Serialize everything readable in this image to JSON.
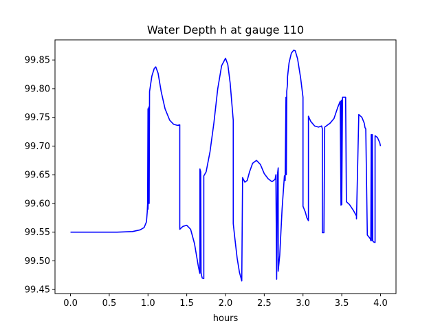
{
  "chart_data": {
    "type": "line",
    "title": "Water Depth h at gauge 110",
    "xlabel": "hours",
    "ylabel": "",
    "xlim": [
      -0.2,
      4.2
    ],
    "ylim": [
      99.443,
      99.885
    ],
    "x_ticks": [
      0.0,
      0.5,
      1.0,
      1.5,
      2.0,
      2.5,
      3.0,
      3.5,
      4.0
    ],
    "x_tick_labels": [
      "0.0",
      "0.5",
      "1.0",
      "1.5",
      "2.0",
      "2.5",
      "3.0",
      "3.5",
      "4.0"
    ],
    "y_ticks": [
      99.45,
      99.5,
      99.55,
      99.6,
      99.65,
      99.7,
      99.75,
      99.8,
      99.85
    ],
    "y_tick_labels": [
      "99.45",
      "99.50",
      "99.55",
      "99.60",
      "99.65",
      "99.70",
      "99.75",
      "99.80",
      "99.85"
    ],
    "grid": false,
    "series": [
      {
        "color": "#0000ff",
        "x": [
          0.0,
          0.3,
          0.6,
          0.8,
          0.9,
          0.95,
          0.98,
          0.99,
          0.995,
          1.0,
          1.0,
          1.005,
          1.01,
          1.015,
          1.02,
          1.05,
          1.08,
          1.1,
          1.13,
          1.17,
          1.22,
          1.28,
          1.33,
          1.38,
          1.41,
          1.41,
          1.45,
          1.5,
          1.55,
          1.6,
          1.65,
          1.665,
          1.67,
          1.67,
          1.68,
          1.685,
          1.69,
          1.7,
          1.72,
          1.72,
          1.75,
          1.8,
          1.85,
          1.9,
          1.95,
          2.0,
          2.03,
          2.06,
          2.1,
          2.1,
          2.12,
          2.15,
          2.18,
          2.2,
          2.21,
          2.22,
          2.22,
          2.25,
          2.28,
          2.31,
          2.35,
          2.4,
          2.45,
          2.5,
          2.55,
          2.6,
          2.64,
          2.65,
          2.66,
          2.67,
          2.68,
          2.68,
          2.7,
          2.73,
          2.76,
          2.77,
          2.78,
          2.785,
          2.79,
          2.79,
          2.8,
          2.8,
          2.82,
          2.85,
          2.88,
          2.9,
          2.93,
          2.97,
          3.0,
          3.0,
          3.03,
          3.05,
          3.07,
          3.07,
          3.1,
          3.15,
          3.2,
          3.24,
          3.25,
          3.25,
          3.27,
          3.27,
          3.28,
          3.3,
          3.35,
          3.4,
          3.45,
          3.48,
          3.49,
          3.495,
          3.5,
          3.51,
          3.52,
          3.53,
          3.54,
          3.55,
          3.55,
          3.56,
          3.6,
          3.65,
          3.69,
          3.69,
          3.72,
          3.76,
          3.79,
          3.8,
          3.81,
          3.83,
          3.86,
          3.87,
          3.875,
          3.88,
          3.885,
          3.89,
          3.895,
          3.9,
          3.905,
          3.91,
          3.93,
          3.93,
          3.96,
          3.99,
          4.0
        ],
        "y": [
          99.55,
          99.55,
          99.55,
          99.551,
          99.554,
          99.558,
          99.568,
          99.585,
          99.6,
          99.765,
          99.59,
          99.61,
          99.768,
          99.6,
          99.795,
          99.822,
          99.835,
          99.838,
          99.827,
          99.795,
          99.765,
          99.745,
          99.738,
          99.736,
          99.737,
          99.555,
          99.56,
          99.562,
          99.555,
          99.53,
          99.49,
          99.48,
          99.478,
          99.66,
          99.655,
          99.48,
          99.475,
          99.47,
          99.469,
          99.648,
          99.655,
          99.69,
          99.74,
          99.8,
          99.84,
          99.853,
          99.842,
          99.81,
          99.745,
          99.565,
          99.54,
          99.505,
          99.48,
          99.47,
          99.465,
          99.64,
          99.645,
          99.637,
          99.64,
          99.655,
          99.67,
          99.675,
          99.668,
          99.652,
          99.643,
          99.638,
          99.642,
          99.65,
          99.468,
          99.65,
          99.662,
          99.482,
          99.51,
          99.59,
          99.648,
          99.64,
          99.785,
          99.65,
          99.79,
          99.795,
          99.808,
          99.82,
          99.845,
          99.862,
          99.867,
          99.866,
          99.852,
          99.818,
          99.785,
          99.595,
          99.585,
          99.575,
          99.57,
          99.752,
          99.743,
          99.735,
          99.733,
          99.735,
          99.73,
          99.549,
          99.549,
          99.549,
          99.733,
          99.735,
          99.74,
          99.748,
          99.768,
          99.778,
          99.597,
          99.78,
          99.598,
          99.785,
          99.785,
          99.785,
          99.785,
          99.785,
          99.785,
          99.603,
          99.598,
          99.588,
          99.578,
          99.573,
          99.755,
          99.75,
          99.74,
          99.732,
          99.73,
          99.545,
          99.54,
          99.538,
          99.535,
          99.72,
          99.72,
          99.535,
          99.72,
          99.535,
          99.534,
          99.533,
          99.532,
          99.718,
          99.715,
          99.706,
          99.7
        ]
      }
    ]
  }
}
